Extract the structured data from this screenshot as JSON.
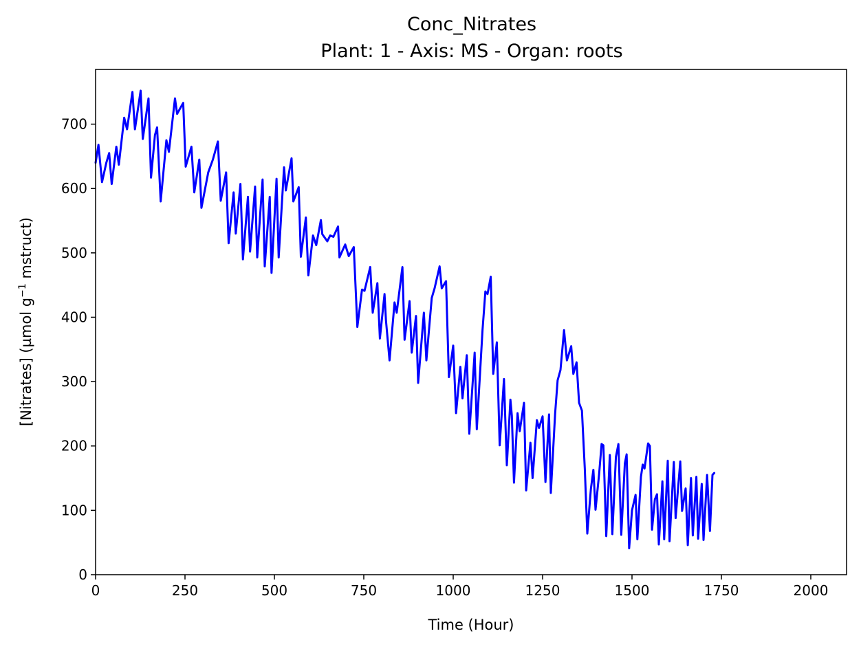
{
  "chart_data": {
    "type": "line",
    "title_line1": "Conc_Nitrates",
    "title_line2": "Plant: 1 - Axis: MS - Organ: roots",
    "xlabel": "Time (Hour)",
    "ylabel_prefix": "[Nitrates] (µmol g",
    "ylabel_sup": "−1",
    "ylabel_suffix": " mstruct)",
    "xlim": [
      0,
      2100
    ],
    "ylim": [
      0,
      785
    ],
    "xticks": [
      0,
      250,
      500,
      750,
      1000,
      1250,
      1500,
      1750,
      2000
    ],
    "xtick_labels": [
      "0",
      "250",
      "500",
      "750",
      "1000",
      "1250",
      "1500",
      "1750",
      "2000"
    ],
    "yticks": [
      0,
      100,
      200,
      300,
      400,
      500,
      600,
      700
    ],
    "ytick_labels": [
      "0",
      "100",
      "200",
      "300",
      "400",
      "500",
      "600",
      "700"
    ],
    "grid": false,
    "legend": "none",
    "line_color": "#0000ff",
    "series": [
      {
        "points": [
          [
            0,
            640
          ],
          [
            8,
            668
          ],
          [
            18,
            610
          ],
          [
            30,
            640
          ],
          [
            38,
            655
          ],
          [
            45,
            607
          ],
          [
            58,
            665
          ],
          [
            65,
            637
          ],
          [
            80,
            710
          ],
          [
            88,
            692
          ],
          [
            103,
            750
          ],
          [
            110,
            692
          ],
          [
            126,
            752
          ],
          [
            132,
            677
          ],
          [
            148,
            740
          ],
          [
            155,
            617
          ],
          [
            166,
            683
          ],
          [
            172,
            695
          ],
          [
            182,
            580
          ],
          [
            198,
            675
          ],
          [
            205,
            657
          ],
          [
            222,
            740
          ],
          [
            228,
            716
          ],
          [
            245,
            733
          ],
          [
            252,
            634
          ],
          [
            268,
            665
          ],
          [
            276,
            594
          ],
          [
            290,
            645
          ],
          [
            296,
            570
          ],
          [
            315,
            625
          ],
          [
            328,
            645
          ],
          [
            342,
            673
          ],
          [
            350,
            581
          ],
          [
            365,
            625
          ],
          [
            372,
            515
          ],
          [
            386,
            594
          ],
          [
            392,
            530
          ],
          [
            405,
            607
          ],
          [
            412,
            490
          ],
          [
            426,
            587
          ],
          [
            432,
            502
          ],
          [
            446,
            603
          ],
          [
            452,
            493
          ],
          [
            467,
            614
          ],
          [
            473,
            479
          ],
          [
            487,
            587
          ],
          [
            492,
            469
          ],
          [
            506,
            615
          ],
          [
            512,
            493
          ],
          [
            527,
            633
          ],
          [
            532,
            597
          ],
          [
            548,
            647
          ],
          [
            553,
            580
          ],
          [
            568,
            602
          ],
          [
            574,
            494
          ],
          [
            588,
            555
          ],
          [
            595,
            465
          ],
          [
            608,
            527
          ],
          [
            617,
            512
          ],
          [
            630,
            551
          ],
          [
            634,
            529
          ],
          [
            648,
            518
          ],
          [
            656,
            527
          ],
          [
            665,
            525
          ],
          [
            678,
            541
          ],
          [
            682,
            493
          ],
          [
            698,
            513
          ],
          [
            708,
            495
          ],
          [
            722,
            509
          ],
          [
            732,
            385
          ],
          [
            745,
            443
          ],
          [
            752,
            441
          ],
          [
            768,
            478
          ],
          [
            775,
            407
          ],
          [
            788,
            453
          ],
          [
            795,
            367
          ],
          [
            808,
            436
          ],
          [
            812,
            395
          ],
          [
            822,
            333
          ],
          [
            836,
            423
          ],
          [
            842,
            407
          ],
          [
            858,
            478
          ],
          [
            864,
            365
          ],
          [
            878,
            425
          ],
          [
            884,
            345
          ],
          [
            896,
            402
          ],
          [
            902,
            298
          ],
          [
            918,
            407
          ],
          [
            925,
            333
          ],
          [
            940,
            430
          ],
          [
            948,
            445
          ],
          [
            962,
            479
          ],
          [
            968,
            445
          ],
          [
            980,
            456
          ],
          [
            988,
            307
          ],
          [
            1000,
            356
          ],
          [
            1008,
            251
          ],
          [
            1020,
            323
          ],
          [
            1026,
            274
          ],
          [
            1038,
            341
          ],
          [
            1045,
            219
          ],
          [
            1060,
            345
          ],
          [
            1066,
            226
          ],
          [
            1082,
            380
          ],
          [
            1090,
            440
          ],
          [
            1096,
            436
          ],
          [
            1105,
            463
          ],
          [
            1112,
            312
          ],
          [
            1122,
            361
          ],
          [
            1130,
            201
          ],
          [
            1142,
            304
          ],
          [
            1150,
            170
          ],
          [
            1160,
            272
          ],
          [
            1164,
            247
          ],
          [
            1170,
            143
          ],
          [
            1180,
            251
          ],
          [
            1186,
            223
          ],
          [
            1198,
            267
          ],
          [
            1204,
            131
          ],
          [
            1216,
            205
          ],
          [
            1222,
            150
          ],
          [
            1234,
            240
          ],
          [
            1240,
            228
          ],
          [
            1250,
            246
          ],
          [
            1258,
            144
          ],
          [
            1268,
            249
          ],
          [
            1273,
            127
          ],
          [
            1285,
            250
          ],
          [
            1292,
            302
          ],
          [
            1300,
            318
          ],
          [
            1310,
            380
          ],
          [
            1318,
            333
          ],
          [
            1330,
            355
          ],
          [
            1336,
            312
          ],
          [
            1345,
            330
          ],
          [
            1352,
            267
          ],
          [
            1360,
            255
          ],
          [
            1368,
            165
          ],
          [
            1375,
            64
          ],
          [
            1385,
            133
          ],
          [
            1392,
            163
          ],
          [
            1398,
            101
          ],
          [
            1408,
            156
          ],
          [
            1415,
            203
          ],
          [
            1420,
            201
          ],
          [
            1428,
            60
          ],
          [
            1438,
            186
          ],
          [
            1445,
            63
          ],
          [
            1455,
            183
          ],
          [
            1462,
            203
          ],
          [
            1470,
            62
          ],
          [
            1480,
            173
          ],
          [
            1485,
            187
          ],
          [
            1492,
            41
          ],
          [
            1500,
            100
          ],
          [
            1510,
            124
          ],
          [
            1515,
            55
          ],
          [
            1525,
            152
          ],
          [
            1530,
            171
          ],
          [
            1535,
            165
          ],
          [
            1545,
            204
          ],
          [
            1550,
            200
          ],
          [
            1556,
            70
          ],
          [
            1564,
            117
          ],
          [
            1570,
            125
          ],
          [
            1575,
            47
          ],
          [
            1585,
            145
          ],
          [
            1590,
            55
          ],
          [
            1600,
            177
          ],
          [
            1605,
            52
          ],
          [
            1617,
            175
          ],
          [
            1622,
            88
          ],
          [
            1635,
            176
          ],
          [
            1640,
            99
          ],
          [
            1650,
            134
          ],
          [
            1656,
            46
          ],
          [
            1665,
            150
          ],
          [
            1670,
            61
          ],
          [
            1680,
            152
          ],
          [
            1685,
            56
          ],
          [
            1695,
            141
          ],
          [
            1700,
            54
          ],
          [
            1710,
            155
          ],
          [
            1718,
            68
          ],
          [
            1725,
            155
          ],
          [
            1730,
            158
          ]
        ]
      }
    ]
  }
}
